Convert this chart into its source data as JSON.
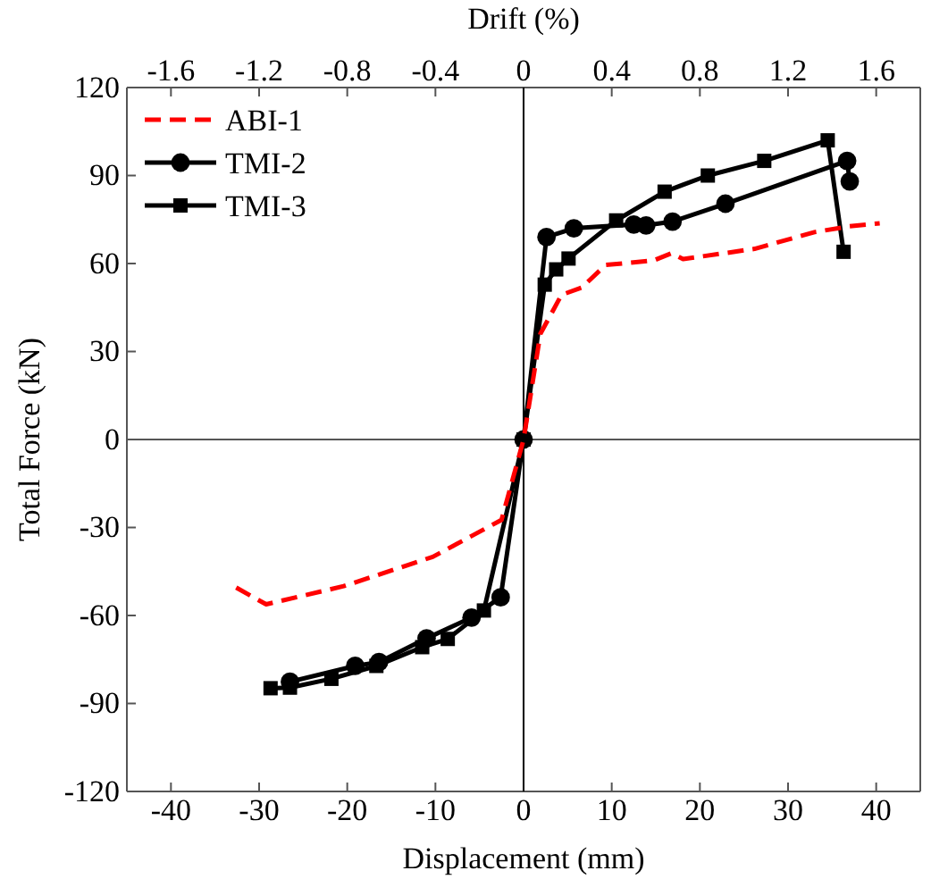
{
  "chart_data": {
    "type": "line",
    "xlabel": "Displacement (mm)",
    "ylabel": "Total Force (kN)",
    "x2label": "Drift (%)",
    "xlim": [
      -45,
      45
    ],
    "xticks": [
      -40,
      -30,
      -20,
      -10,
      0,
      10,
      20,
      30,
      40
    ],
    "x2lim": [
      -1.8,
      1.8
    ],
    "x2ticks": [
      -1.6,
      -1.2,
      -0.8,
      -0.4,
      0,
      0.4,
      0.8,
      1.2,
      1.6
    ],
    "ylim": [
      -120,
      120
    ],
    "yticks": [
      -120,
      -90,
      -60,
      -30,
      0,
      30,
      60,
      90,
      120
    ],
    "grid": false,
    "legend": "top left",
    "ref_lines": [
      {
        "axis": "x",
        "value": 0,
        "color": "#000000"
      },
      {
        "axis": "y",
        "value": 0,
        "color": "#555555"
      }
    ],
    "series": [
      {
        "name": "ABI-1",
        "color": "#ff0000",
        "line_style": "dashed",
        "marker": "none",
        "x": [
          -32.6,
          -29.2,
          -20.4,
          -10.3,
          -2.5,
          0,
          1.9,
          4.3,
          6.6,
          9.3,
          14.7,
          16.8,
          18.1,
          26.2,
          33,
          37,
          40.4
        ],
        "values": [
          -50.5,
          -56.2,
          -50,
          -40,
          -27.4,
          0,
          36,
          49.3,
          51.8,
          59.5,
          61,
          63.5,
          61.5,
          65,
          70.7,
          72.7,
          73.7
        ]
      },
      {
        "name": "TMI-2",
        "color": "#000000",
        "line_style": "solid",
        "marker": "circle",
        "x": [
          -26.5,
          -19.1,
          -16.4,
          -11,
          -5.9,
          -2.6,
          0,
          2.6,
          5.7,
          12.5,
          13.9,
          16.9,
          22.9,
          36.7,
          37
        ],
        "values": [
          -82.6,
          -77.2,
          -75.9,
          -67.8,
          -60.7,
          -53.8,
          0,
          69,
          72,
          73.3,
          73,
          74.3,
          80.4,
          95,
          88
        ]
      },
      {
        "name": "TMI-3",
        "color": "#000000",
        "line_style": "solid",
        "marker": "square",
        "x": [
          -28.7,
          -26.5,
          -21.8,
          -16.7,
          -11.5,
          -8.6,
          -4.5,
          0,
          2.4,
          3.7,
          5.1,
          10.5,
          16,
          20.9,
          27.3,
          34.5,
          36.3
        ],
        "values": [
          -84.8,
          -84.6,
          -81.6,
          -77.2,
          -70.8,
          -68,
          -58.3,
          0,
          52.8,
          58,
          61.7,
          74.7,
          84.5,
          90,
          95,
          102,
          64
        ]
      }
    ]
  }
}
